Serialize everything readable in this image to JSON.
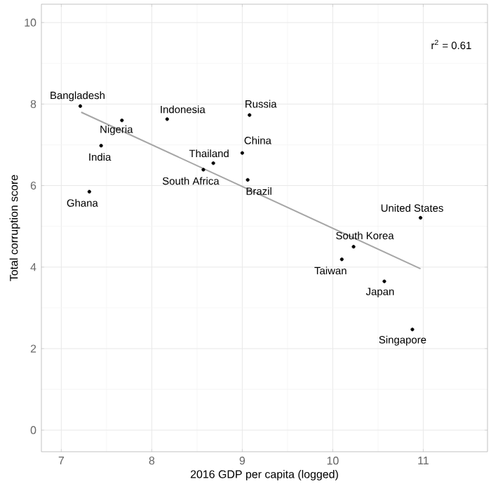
{
  "chart_data": {
    "type": "scatter",
    "xlabel": "2016 GDP per capita (logged)",
    "ylabel": "Total corruption score",
    "xlim": [
      6.78,
      11.71
    ],
    "ylim": [
      -0.53,
      10.45
    ],
    "xticks": [
      7,
      8,
      9,
      10,
      11
    ],
    "yticks": [
      0,
      2,
      4,
      6,
      8,
      10
    ],
    "grid": true,
    "series": [
      {
        "marker": "circle",
        "color": "#000000",
        "x": [
          7.21,
          7.67,
          8.17,
          9.08,
          7.44,
          9.0,
          8.68,
          8.57,
          9.06,
          7.31,
          10.97,
          10.23,
          10.1,
          10.57,
          10.88
        ],
        "values": [
          7.95,
          7.6,
          7.63,
          7.73,
          6.98,
          6.8,
          6.55,
          6.39,
          6.14,
          5.85,
          5.21,
          4.5,
          4.19,
          3.65,
          2.47
        ]
      },
      {
        "type": "line",
        "marker": "none",
        "color": "#a6a6a6",
        "x": [
          7.22,
          10.97
        ],
        "values": [
          7.8,
          3.96
        ]
      }
    ],
    "annotations": [
      {
        "text": "Bangladesh",
        "x": 7.21,
        "y": 7.95
      },
      {
        "text": "Nigeria",
        "x": 7.67,
        "y": 7.6
      },
      {
        "text": "Indonesia",
        "x": 8.17,
        "y": 7.63
      },
      {
        "text": "Russia",
        "x": 9.08,
        "y": 7.73
      },
      {
        "text": "India",
        "x": 7.44,
        "y": 6.98
      },
      {
        "text": "China",
        "x": 9.0,
        "y": 6.8
      },
      {
        "text": "Thailand",
        "x": 8.68,
        "y": 6.55
      },
      {
        "text": "South Africa",
        "x": 8.57,
        "y": 6.39
      },
      {
        "text": "Brazil",
        "x": 9.06,
        "y": 6.14
      },
      {
        "text": "Ghana",
        "x": 7.31,
        "y": 5.85
      },
      {
        "text": "United States",
        "x": 10.97,
        "y": 5.21
      },
      {
        "text": "South Korea",
        "x": 10.23,
        "y": 4.5
      },
      {
        "text": "Taiwan",
        "x": 10.1,
        "y": 4.19
      },
      {
        "text": "Japan",
        "x": 10.57,
        "y": 3.65
      },
      {
        "text": "Singapore",
        "x": 10.88,
        "y": 2.47
      },
      "r$^{2}$ = 0.61"
    ]
  }
}
